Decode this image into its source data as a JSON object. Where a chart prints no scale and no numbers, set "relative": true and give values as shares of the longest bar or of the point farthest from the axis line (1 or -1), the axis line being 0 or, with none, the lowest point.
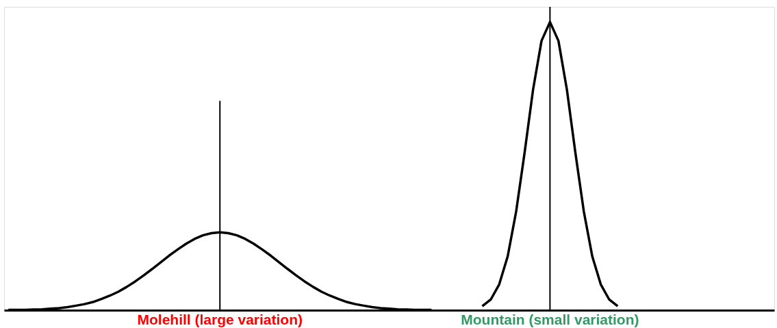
{
  "chart_data": {
    "type": "line",
    "relative": true,
    "tick_labels": "x",
    "marker": "none",
    "line_style": "solid",
    "categories": [
      null,
      null,
      null,
      null,
      null,
      null,
      null,
      null,
      null,
      null,
      null,
      null,
      null,
      null,
      null,
      null,
      null,
      null,
      null,
      null,
      null,
      null,
      null,
      null,
      null,
      "Molehill (large variation)",
      null,
      null,
      null,
      null,
      null,
      null,
      null,
      null,
      null,
      null,
      null,
      null,
      null,
      null,
      null,
      null,
      null,
      null,
      null,
      null,
      null,
      null,
      null,
      null,
      null,
      null,
      null,
      null,
      null,
      null,
      null,
      null,
      null,
      null,
      null,
      null,
      null,
      null,
      "Mountain (small variation)",
      null,
      null,
      null,
      null,
      null,
      null,
      null,
      null,
      null,
      null,
      null,
      null,
      null,
      null,
      null,
      null,
      null,
      null,
      null,
      null,
      null,
      null,
      null,
      null,
      null,
      null
    ],
    "series": [
      {
        "color": "#000000",
        "values": [
          0.001,
          0.001,
          0.001,
          0.002,
          0.003,
          0.005,
          0.007,
          0.01,
          0.015,
          0.02,
          0.027,
          0.037,
          0.048,
          0.061,
          0.077,
          0.095,
          0.115,
          0.136,
          0.158,
          0.18,
          0.2,
          0.219,
          0.235,
          0.247,
          0.254,
          0.257,
          0.254,
          0.247,
          0.235,
          0.219,
          0.2,
          0.18,
          0.158,
          0.136,
          0.115,
          0.095,
          0.077,
          0.061,
          0.048,
          0.037,
          0.027,
          0.02,
          0.015,
          0.01,
          0.007,
          0.005,
          0.003,
          0.002,
          0.001,
          0.001,
          0.001,
          null,
          null,
          null,
          null,
          null,
          null,
          null,
          null,
          null,
          null,
          null,
          null,
          null,
          null,
          null,
          null,
          null,
          null,
          null,
          null,
          null,
          null,
          null,
          null,
          null,
          null,
          null,
          null,
          null,
          null,
          null,
          null,
          null,
          null,
          null,
          null,
          null,
          null,
          null,
          null
        ]
      },
      {
        "color": "#000000",
        "values": [
          null,
          null,
          null,
          null,
          null,
          null,
          null,
          null,
          null,
          null,
          null,
          null,
          null,
          null,
          null,
          null,
          null,
          null,
          null,
          null,
          null,
          null,
          null,
          null,
          null,
          null,
          null,
          null,
          null,
          null,
          null,
          null,
          null,
          null,
          null,
          null,
          null,
          null,
          null,
          null,
          null,
          null,
          null,
          null,
          null,
          null,
          null,
          null,
          null,
          null,
          null,
          null,
          null,
          null,
          null,
          null,
          0.013,
          0.035,
          0.085,
          0.177,
          0.325,
          0.519,
          0.727,
          0.888,
          0.95,
          0.888,
          0.727,
          0.519,
          0.325,
          0.177,
          0.085,
          0.035,
          0.013,
          null,
          null,
          null,
          null,
          null,
          null,
          null,
          null,
          null,
          null,
          null,
          null,
          null,
          null,
          null,
          null,
          null,
          null
        ]
      },
      {
        "type": "bar",
        "color": "#000000",
        "values": [
          null,
          null,
          null,
          null,
          null,
          null,
          null,
          null,
          null,
          null,
          null,
          null,
          null,
          null,
          null,
          null,
          null,
          null,
          null,
          null,
          null,
          null,
          null,
          null,
          null,
          0.69,
          null,
          null,
          null,
          null,
          null,
          null,
          null,
          null,
          null,
          null,
          null,
          null,
          null,
          null,
          null,
          null,
          null,
          null,
          null,
          null,
          null,
          null,
          null,
          null,
          null,
          null,
          null,
          null,
          null,
          null,
          null,
          null,
          null,
          null,
          null,
          null,
          null,
          null,
          1,
          null,
          null,
          null,
          null,
          null,
          null,
          null,
          null,
          null,
          null,
          null,
          null,
          null,
          null,
          null,
          null,
          null,
          null,
          null,
          null,
          null,
          null,
          null,
          null,
          null,
          null
        ]
      }
    ]
  }
}
